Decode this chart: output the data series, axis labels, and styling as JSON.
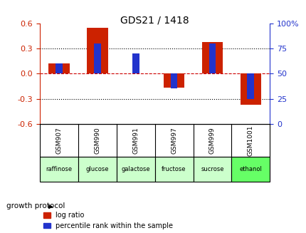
{
  "title": "GDS21 / 1418",
  "samples": [
    "GSM907",
    "GSM990",
    "GSM991",
    "GSM997",
    "GSM999",
    "GSM1001"
  ],
  "protocols": [
    "raffinose",
    "glucose",
    "galactose",
    "fructose",
    "sucrose",
    "ethanol"
  ],
  "log_ratio": [
    0.12,
    0.55,
    0.0,
    -0.17,
    0.38,
    -0.37
  ],
  "percentile": [
    60,
    80,
    70,
    35,
    80,
    25
  ],
  "red_color": "#cc2200",
  "blue_color": "#2233cc",
  "ylim_left": [
    -0.6,
    0.6
  ],
  "ylim_right": [
    0,
    100
  ],
  "yticks_left": [
    -0.6,
    -0.3,
    0.0,
    0.3,
    0.6
  ],
  "yticks_right": [
    0,
    25,
    50,
    75,
    100
  ],
  "protocol_colors": [
    "#ccffcc",
    "#ccffcc",
    "#ccffcc",
    "#ccffcc",
    "#ccffcc",
    "#66ff66"
  ],
  "zero_line_color": "#cc0000",
  "bg_color": "#ffffff",
  "label_log": "log ratio",
  "label_pct": "percentile rank within the sample",
  "gsm_bg": "#cccccc",
  "growth_protocol_label": "growth protocol"
}
